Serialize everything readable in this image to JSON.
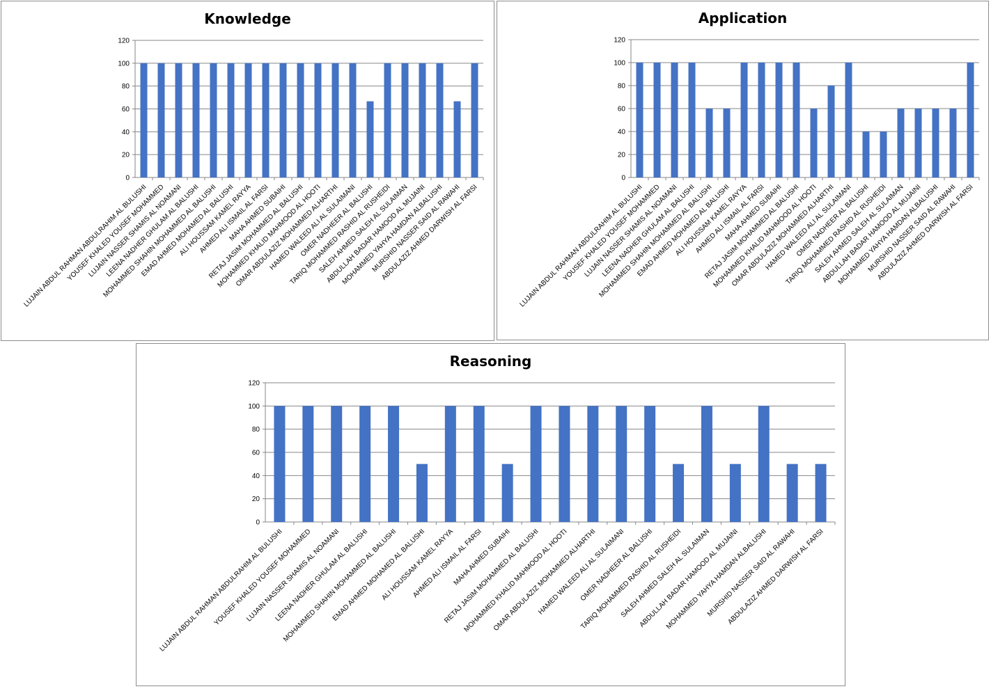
{
  "chart_data": [
    {
      "type": "bar",
      "title": "Knowledge",
      "xlabel": "",
      "ylabel": "",
      "ylim": [
        0,
        120
      ],
      "yticks": [
        0,
        20,
        40,
        60,
        80,
        100,
        120
      ],
      "grid": true,
      "color": "#4472C4",
      "categories": [
        "LUJAIN ABDUL RAHMAN ABDULRAHIM AL BULUSHI",
        "YOUSEF KHALED YOUSEF MOHAMMED",
        "LUJAIN NASSER SHAMIS AL NOAMANI",
        "LEENA NADHER GHULAM AL BALUSHI",
        "MOHAMMED SHAHIN MOHAMMED AL BALUSHI",
        "EMAD AHMED MOHAMED AL BALUSHI",
        "ALI HOUSSAM KAMEL RAYYA",
        "AHMED ALI ISMAIL AL FARSI",
        "MAHA AHMED SUBAIHI",
        "RETAJ JASIM MOHAMMED AL BALUSHI",
        "MOHAMMED KHALID MAHMOOD AL HOOTI",
        "OMAR ABDULAZIZ MOHAMMED ALHARTHI",
        "HAMED WALEED ALI AL SULAIMANI",
        "OMER NADHEER AL BALUSHI",
        "TARIQ MOHAMMED RASHID AL RUSHEIDI",
        "SALEH AHMED SALEH AL SULAIMAN",
        "ABDULLAH BADAR HAMOOD AL MUJAINI",
        "MOHAMMED YAHYA HAMDAN ALBALUSHI",
        "MURSHID NASSER SAID AL RAWAHI",
        "ABDULAZIZ AHMED DARWISH AL FARSI"
      ],
      "values": [
        100,
        100,
        100,
        100,
        100,
        100,
        100,
        100,
        100,
        100,
        100,
        100,
        100,
        66.67,
        100,
        100,
        100,
        100,
        66.67,
        100
      ]
    },
    {
      "type": "bar",
      "title": "Application",
      "xlabel": "",
      "ylabel": "",
      "ylim": [
        0,
        120
      ],
      "yticks": [
        0,
        20,
        40,
        60,
        80,
        100,
        120
      ],
      "grid": true,
      "color": "#4472C4",
      "categories": [
        "LUJAIN ABDUL RAHMAN ABDULRAHIM AL BULUSHI",
        "YOUSEF KHALED YOUSEF MOHAMMED",
        "LUJAIN NASSER SHAMIS AL NOAMANI",
        "LEENA NADHER GHULAM AL BALUSHI",
        "MOHAMMED SHAHIN MOHAMMED AL BALUSHI",
        "EMAD AHMED MOHAMED AL BALUSHI",
        "ALI HOUSSAM KAMEL RAYYA",
        "AHMED ALI ISMAIL AL FARSI",
        "MAHA AHMED SUBAIHI",
        "RETAJ JASIM MOHAMMED AL BALUSHI",
        "MOHAMMED KHALID MAHMOOD AL HOOTI",
        "OMAR ABDULAZIZ MOHAMMED ALHARTHI",
        "HAMED WALEED ALI AL SULAIMANI",
        "OMER NADHEER AL BALUSHI",
        "TARIQ MOHAMMED RASHID AL RUSHEIDI",
        "SALEH AHMED SALEH AL SULAIMAN",
        "ABDULLAH BADAR HAMOOD AL MUJAINI",
        "MOHAMMED YAHYA HAMDAN ALBALUSHI",
        "MURSHID NASSER SAID AL RAWAHI",
        "ABDULAZIZ AHMED DARWISH AL FARSI"
      ],
      "values": [
        100,
        100,
        100,
        100,
        60,
        60,
        100,
        100,
        100,
        100,
        60,
        80,
        100,
        40,
        40,
        60,
        60,
        60,
        60,
        100
      ]
    },
    {
      "type": "bar",
      "title": "Reasoning",
      "xlabel": "",
      "ylabel": "",
      "ylim": [
        0,
        120
      ],
      "yticks": [
        0,
        20,
        40,
        60,
        80,
        100,
        120
      ],
      "grid": true,
      "color": "#4472C4",
      "categories": [
        "LUJAIN ABDUL RAHMAN ABDULRAHIM AL BULUSHI",
        "YOUSEF KHALED YOUSEF MOHAMMED",
        "LUJAIN NASSER SHAMIS AL NOAMANI",
        "LEENA NADHER GHULAM AL BALUSHI",
        "MOHAMMED SHAHIN MOHAMMED AL BALUSHI",
        "EMAD AHMED MOHAMED AL BALUSHI",
        "ALI HOUSSAM KAMEL RAYYA",
        "AHMED ALI ISMAIL AL FARSI",
        "MAHA AHMED SUBAIHI",
        "RETAJ JASIM MOHAMMED AL BALUSHI",
        "MOHAMMED KHALID MAHMOOD AL HOOTI",
        "OMAR ABDULAZIZ MOHAMMED ALHARTHI",
        "HAMED WALEED ALI AL SULAIMANI",
        "OMER NADHEER AL BALUSHI",
        "TARIQ MOHAMMED RASHID AL RUSHEIDI",
        "SALEH AHMED SALEH AL SULAIMAN",
        "ABDULLAH BADAR HAMOOD AL MUJAINI",
        "MOHAMMED YAHYA HAMDAN ALBALUSHI",
        "MURSHID NASSER SAID AL RAWAHI",
        "ABDULAZIZ AHMED DARWISH AL FARSI"
      ],
      "values": [
        100,
        100,
        100,
        100,
        100,
        50,
        100,
        100,
        50,
        100,
        100,
        100,
        100,
        100,
        50,
        100,
        50,
        100,
        50,
        50
      ]
    }
  ]
}
